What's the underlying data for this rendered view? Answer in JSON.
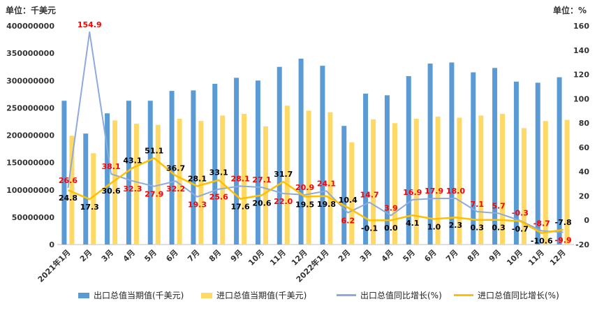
{
  "unit_left": "单位：千美元",
  "unit_right": "单位：%",
  "chart_data": {
    "type": "bar",
    "categories": [
      "2021年1月",
      "2月",
      "3月",
      "4月",
      "5月",
      "6月",
      "7月",
      "8月",
      "9月",
      "10月",
      "11月",
      "12月",
      "2022年1月",
      "2月",
      "3月",
      "4月",
      "5月",
      "6月",
      "7月",
      "8月",
      "9月",
      "10月",
      "11月",
      "12月"
    ],
    "y_left": {
      "min": 0,
      "max": 400000000,
      "ticks": [
        "0",
        "50000000",
        "100000000",
        "150000000",
        "200000000",
        "250000000",
        "300000000",
        "350000000",
        "400000000"
      ]
    },
    "y_right": {
      "min": -20,
      "max": 160,
      "ticks": [
        "-20",
        "0",
        "20",
        "40",
        "60",
        "80",
        "100",
        "120",
        "140",
        "160"
      ]
    },
    "series": [
      {
        "name": "出口总值当期值(千美元)",
        "kind": "bar",
        "color": "#5B9BD5",
        "axis": "left",
        "values": [
          263000000,
          203000000,
          240000000,
          263000000,
          263000000,
          281000000,
          282000000,
          294000000,
          305000000,
          300000000,
          325000000,
          340000000,
          327000000,
          217000000,
          276000000,
          273000000,
          308000000,
          331000000,
          333000000,
          315000000,
          323000000,
          298000000,
          296000000,
          306000000
        ]
      },
      {
        "name": "进口总值当期值(千美元)",
        "kind": "bar",
        "color": "#FFD966",
        "axis": "left",
        "values": [
          199000000,
          167000000,
          227000000,
          221000000,
          219000000,
          230000000,
          226000000,
          236000000,
          239000000,
          216000000,
          254000000,
          245000000,
          242000000,
          187000000,
          229000000,
          222000000,
          230000000,
          234000000,
          232000000,
          236000000,
          239000000,
          213000000,
          226000000,
          228000000
        ]
      },
      {
        "name": "出口总值同比增长(%)",
        "kind": "line",
        "color": "#8EA9DB",
        "axis": "right",
        "values": [
          26.6,
          154.9,
          38.1,
          32.3,
          27.9,
          32.2,
          19.3,
          25.6,
          28.1,
          27.1,
          22.0,
          20.9,
          24.1,
          6.2,
          14.7,
          3.9,
          16.9,
          17.9,
          18.0,
          7.1,
          5.7,
          -0.3,
          -8.7,
          -9.9
        ],
        "labels": [
          "26.6",
          "154.9",
          "38.1",
          "32.3",
          "27.9",
          "32.2",
          "19.3",
          "25.6",
          "28.1",
          "27.1",
          "22.0",
          "20.9",
          "24.1",
          "6.2",
          "14.7",
          "3.9",
          "16.9",
          "17.9",
          "18.0",
          "7.1",
          "5.7",
          "-0.3",
          "-8.7",
          "-9.9"
        ],
        "label_color": "#ff0000"
      },
      {
        "name": "进口总值同比增长(%)",
        "kind": "line",
        "color": "#FFC000",
        "axis": "right",
        "values": [
          24.8,
          17.3,
          30.6,
          43.1,
          51.1,
          36.7,
          28.1,
          33.1,
          17.6,
          20.6,
          31.7,
          19.5,
          19.8,
          10.4,
          -0.1,
          0.0,
          4.1,
          1.0,
          2.3,
          0.3,
          0.3,
          -0.7,
          -10.6,
          -7.8
        ],
        "labels": [
          "24.8",
          "17.3",
          "30.6",
          "43.1",
          "51.1",
          "36.7",
          "28.1",
          "33.1",
          "17.6",
          "20.6",
          "31.7",
          "19.5",
          "19.8",
          "10.4",
          "-0.1",
          "0.0",
          "4.1",
          "1.0",
          "2.3",
          "0.3",
          "0.3",
          "-0.7",
          "-10.6",
          "-7.8"
        ],
        "label_color": "#000000"
      }
    ],
    "legend_position": "bottom",
    "grid": false
  }
}
